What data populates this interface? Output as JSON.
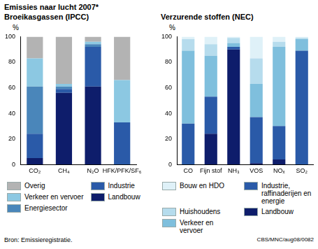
{
  "title": "Emissies naar lucht 2007*",
  "source": "Bron: Emissieregistratie.",
  "code": "CBS/MNC/aug08/0082",
  "chart_data": [
    {
      "type": "bar",
      "stacked": true,
      "grid": false,
      "legend": "bottom",
      "title": "Broeikasgassen (IPCC)",
      "ylabel": "%",
      "categories": [
        "CO₂",
        "CH₄",
        "N₂O",
        "HFK/PFK/SF₆"
      ],
      "ylim": [
        0,
        100
      ],
      "yticks": [
        0,
        20,
        40,
        60,
        80,
        100
      ],
      "series": [
        {
          "name": "Landbouw",
          "color": "#0e1d6b",
          "values": [
            5,
            56,
            61,
            0
          ]
        },
        {
          "name": "Industrie",
          "color": "#2a5aa8",
          "values": [
            19,
            3,
            31,
            33
          ]
        },
        {
          "name": "Energiesector",
          "color": "#4a86ba",
          "values": [
            37,
            2,
            2,
            0
          ]
        },
        {
          "name": "Verkeer en vervoer",
          "color": "#8cc8e2",
          "values": [
            22,
            2,
            2,
            33
          ]
        },
        {
          "name": "Overig",
          "color": "#b3b3b3",
          "values": [
            17,
            37,
            4,
            34
          ]
        }
      ]
    },
    {
      "type": "bar",
      "stacked": true,
      "grid": false,
      "legend": "bottom",
      "title": "Verzurende stoffen (NEC)",
      "ylabel": "%",
      "categories": [
        "CO",
        "Fijn stof",
        "NH₃",
        "VOS",
        "NOₓ",
        "SO₂"
      ],
      "ylim": [
        0,
        100
      ],
      "yticks": [
        0,
        20,
        40,
        60,
        80,
        100
      ],
      "series": [
        {
          "name": "Landbouw",
          "color": "#0e1d6b",
          "values": [
            0,
            24,
            90,
            1,
            4,
            0
          ]
        },
        {
          "name": "Industrie, raffinaderijen en energie",
          "color": "#2a5aa8",
          "values": [
            32,
            29,
            2,
            36,
            26,
            89
          ]
        },
        {
          "name": "Verkeer en vervoer",
          "color": "#7fbfdd",
          "values": [
            57,
            32,
            3,
            26,
            62,
            9
          ]
        },
        {
          "name": "Huishoudens",
          "color": "#b6dced",
          "values": [
            9,
            9,
            4,
            20,
            4,
            1
          ]
        },
        {
          "name": "Bouw en HDO",
          "color": "#dff1f8",
          "values": [
            2,
            6,
            1,
            17,
            4,
            1
          ]
        }
      ]
    }
  ]
}
